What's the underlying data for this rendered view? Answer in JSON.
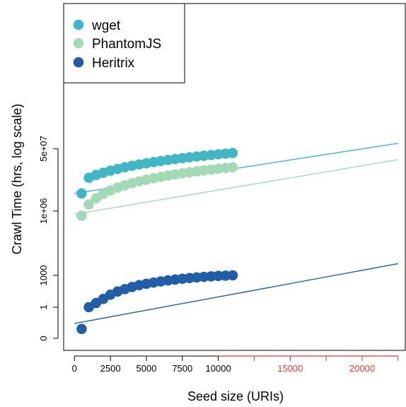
{
  "chart_data": {
    "type": "scatter",
    "title": "",
    "xlabel": "Seed size (URIs)",
    "ylabel": "Crawl Time (hrs, log scale)",
    "xlim": [
      -750,
      23000
    ],
    "ylim_labels_note": "log scale",
    "x_ticks": [
      {
        "value": 0,
        "label": "0",
        "color": "#000000"
      },
      {
        "value": 2500,
        "label": "2500",
        "color": "#000000"
      },
      {
        "value": 5000,
        "label": "5000",
        "color": "#000000"
      },
      {
        "value": 7500,
        "label": "7500",
        "color": "#000000"
      },
      {
        "value": 10000,
        "label": "10000",
        "color": "#000000"
      },
      {
        "value": 15000,
        "label": "15000",
        "color": "#e53935"
      },
      {
        "value": 20000,
        "label": "20000",
        "color": "#e53935"
      }
    ],
    "extrapolated_axis_ticks": [
      12500,
      15000,
      17500,
      20000,
      22500
    ],
    "y_ticks": [
      {
        "value": 0.1,
        "label": "0"
      },
      {
        "value": 1,
        "label": "1"
      },
      {
        "value": 1000,
        "label": "1000"
      },
      {
        "value": 1000000,
        "label": "1e+06"
      },
      {
        "value": 50000000,
        "label": "5e+07"
      }
    ],
    "grid": false,
    "legend_position": "top-left",
    "series": [
      {
        "name": "wget",
        "color": "#41b6c4",
        "x": [
          500,
          1000,
          1500,
          2000,
          2500,
          3000,
          3500,
          4000,
          4500,
          5000,
          5500,
          6000,
          6500,
          7000,
          7500,
          8000,
          8500,
          9000,
          9500,
          10000,
          10500,
          11000
        ],
        "y": [
          3000000,
          8000000,
          9500000,
          11000000,
          12500000,
          14000000,
          15500000,
          17000000,
          18500000,
          20000000,
          21500000,
          23000000,
          24500000,
          26000000,
          27500000,
          29000000,
          30500000,
          32000000,
          33500000,
          35000000,
          36500000,
          38000000
        ],
        "trend": {
          "x_from": 0,
          "y_from": 3000000,
          "x_to": 22500,
          "y_to": 70000000
        }
      },
      {
        "name": "PhantomJS",
        "color": "#a1dab4",
        "x": [
          500,
          1000,
          1500,
          2000,
          2500,
          3000,
          3500,
          4000,
          4500,
          5000,
          5500,
          6000,
          6500,
          7000,
          7500,
          8000,
          8500,
          9000,
          9500,
          10000,
          10500,
          11000
        ],
        "y": [
          600000,
          1500000,
          2200000,
          2900000,
          3600000,
          4300000,
          5000000,
          5700000,
          6400000,
          7100000,
          7800000,
          8500000,
          9200000,
          9900000,
          10600000,
          11300000,
          12000000,
          12700000,
          13400000,
          14100000,
          14800000,
          15500000
        ],
        "trend": {
          "x_from": 0,
          "y_from": 700000,
          "x_to": 22500,
          "y_to": 25000000
        }
      },
      {
        "name": "Heritrix",
        "color": "#225ea8",
        "x": [
          500,
          1000,
          1500,
          2000,
          2500,
          3000,
          3500,
          4000,
          4500,
          5000,
          5500,
          6000,
          6500,
          7000,
          7500,
          8000,
          8500,
          9000,
          9500,
          10000,
          10500,
          11000
        ],
        "y": [
          0.2,
          1,
          2.5,
          6,
          15,
          30,
          50,
          80,
          120,
          160,
          210,
          270,
          330,
          400,
          480,
          560,
          640,
          720,
          800,
          880,
          940,
          1000
        ],
        "trend": {
          "x_from": 0,
          "y_from": 0.3,
          "x_to": 22500,
          "y_to": 3500
        }
      }
    ]
  }
}
